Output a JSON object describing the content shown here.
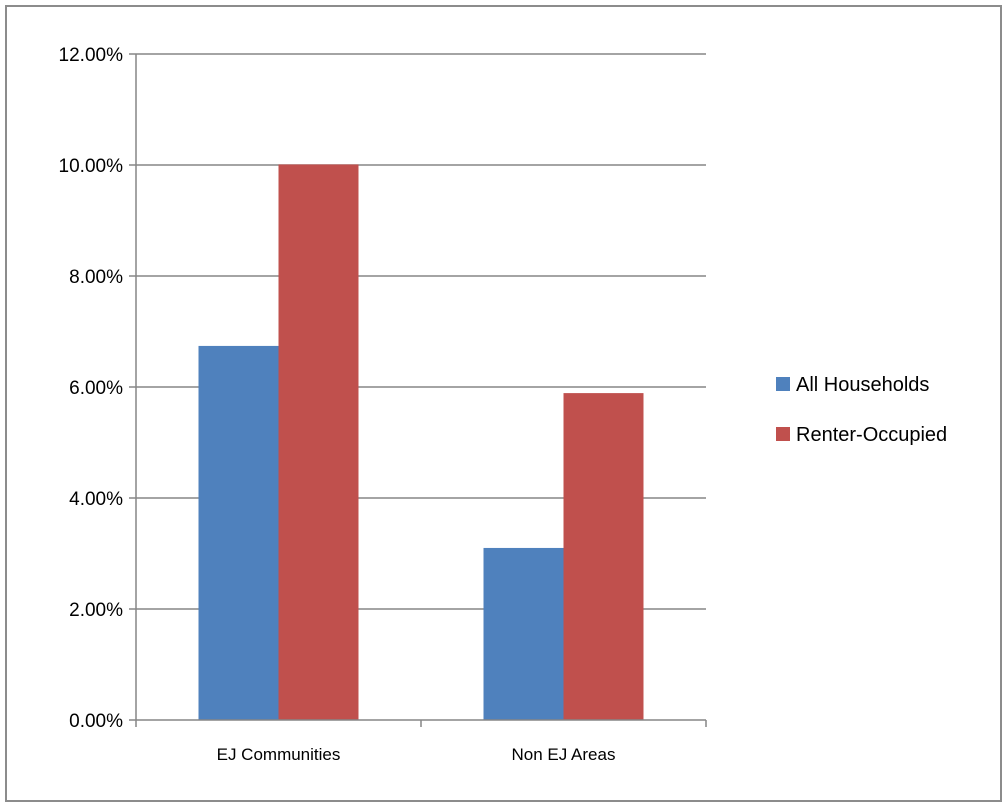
{
  "chart_data": {
    "type": "bar",
    "categories": [
      "EJ Communities",
      "Non EJ Areas"
    ],
    "series": [
      {
        "name": "All Households",
        "values": [
          6.74,
          3.1
        ],
        "color": "#4f81bd"
      },
      {
        "name": "Renter-Occupied",
        "values": [
          10.01,
          5.89
        ],
        "color": "#c0504d"
      }
    ],
    "ylim": [
      0,
      12
    ],
    "y_ticks": [
      0,
      2,
      4,
      6,
      8,
      10,
      12
    ],
    "y_tick_labels": [
      "0.00%",
      "2.00%",
      "4.00%",
      "6.00%",
      "8.00%",
      "10.00%",
      "12.00%"
    ],
    "grid": true,
    "legend_position": "right",
    "title": "",
    "xlabel": "",
    "ylabel": ""
  }
}
